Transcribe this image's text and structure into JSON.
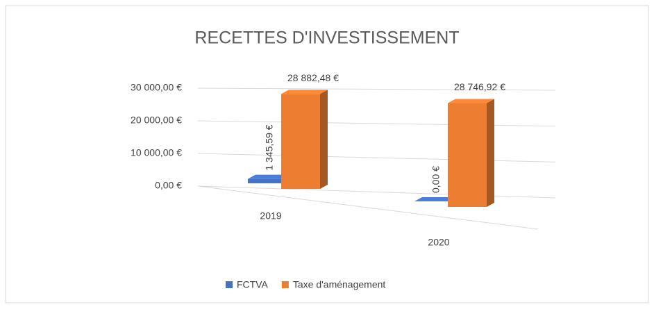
{
  "chart_data": {
    "type": "bar3d",
    "title": "RECETTES D'INVESTISSEMENT",
    "categories": [
      "2019",
      "2020"
    ],
    "series": [
      {
        "name": "FCTVA",
        "color": "#4472c4",
        "values": [
          1345.59,
          0
        ],
        "value_labels": [
          "1 345,59 €",
          "0,00 €"
        ]
      },
      {
        "name": "Taxe d'aménagement",
        "color": "#ed7d31",
        "values": [
          28882.48,
          28746.92
        ],
        "value_labels": [
          "28 882,48 €",
          "28 746,92 €"
        ]
      }
    ],
    "ylim": [
      0,
      30000
    ],
    "yticks": [
      {
        "value": 0,
        "label": "0,00 €"
      },
      {
        "value": 10000,
        "label": "10 000,00 €"
      },
      {
        "value": 20000,
        "label": "20 000,00 €"
      },
      {
        "value": 30000,
        "label": "30 000,00 €"
      }
    ],
    "grid": true,
    "legend": "bottom"
  }
}
